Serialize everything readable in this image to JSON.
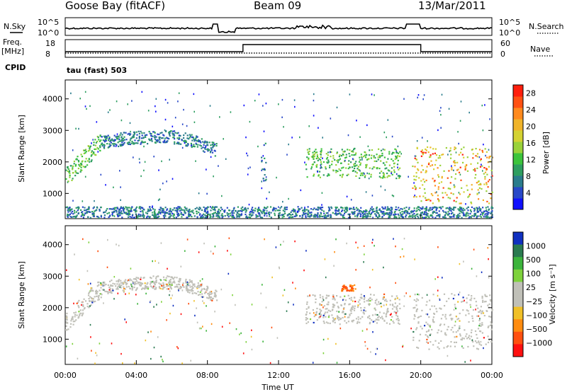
{
  "header": {
    "station": "Goose Bay (fitACF)",
    "beam": "Beam 09",
    "date": "13/Mar/2011"
  },
  "top_panels": {
    "nsky_label": "N.Sky",
    "nsearch_label": "N.Search",
    "freq_label": "Freq.",
    "freq_unit": "[MHz]",
    "nave_label": "Nave",
    "cpid_label": "CPID",
    "cpid_value": "tau (fast) 503",
    "noise_ticks": [
      "10^5",
      "10^0"
    ],
    "freq_ticks": [
      "18",
      "8"
    ],
    "nave_ticks": [
      "60",
      "0"
    ]
  },
  "chart_data": [
    {
      "type": "heatmap",
      "name": "power",
      "ylabel": "Slant Range [km]",
      "xlabel": "",
      "xlim": [
        0,
        24
      ],
      "ylim": [
        200,
        4600
      ],
      "x_ticks": [
        "00:00",
        "04:00",
        "08:00",
        "12:00",
        "16:00",
        "20:00",
        "00:00"
      ],
      "y_ticks": [
        1000,
        2000,
        3000,
        4000
      ],
      "colorbar": {
        "label": "Power [dB]",
        "ticks": [
          4,
          8,
          12,
          16,
          20,
          24,
          28
        ],
        "range": [
          0,
          30
        ],
        "colors": [
          "#1010ff",
          "#2848c8",
          "#2a7c8c",
          "#2e9e60",
          "#3cc43c",
          "#9ad23a",
          "#d4d232",
          "#f0b42a",
          "#ff8a1e",
          "#ff5012",
          "#ff1e0c"
        ]
      },
      "regions": [
        {
          "t0": 0.0,
          "t1": 2.0,
          "r0": 1450,
          "r1": 3100,
          "level": "mid"
        },
        {
          "t0": 2.0,
          "t1": 8.5,
          "r0": 2300,
          "r1": 2950,
          "level": "low"
        },
        {
          "t0": 11.0,
          "t1": 11.3,
          "r0": 1400,
          "r1": 2700,
          "level": "low"
        },
        {
          "t0": 13.5,
          "t1": 18.8,
          "r0": 1500,
          "r1": 2450,
          "level": "mid"
        },
        {
          "t0": 19.5,
          "t1": 24.0,
          "r0": 700,
          "r1": 2500,
          "level": "high"
        },
        {
          "t0": 0.0,
          "t1": 24.0,
          "r0": 250,
          "r1": 600,
          "level": "low"
        }
      ]
    },
    {
      "type": "heatmap",
      "name": "velocity",
      "ylabel": "Slant Range [km]",
      "xlabel": "Time UT",
      "xlim": [
        0,
        24
      ],
      "ylim": [
        200,
        4600
      ],
      "x_ticks": [
        "00:00",
        "04:00",
        "08:00",
        "12:00",
        "16:00",
        "20:00",
        "00:00"
      ],
      "y_ticks": [
        1000,
        2000,
        3000,
        4000
      ],
      "colorbar": {
        "label": "Velocity [m s⁻¹]",
        "ticks": [
          "1000",
          "500",
          "100",
          "25",
          "−25",
          "−100",
          "−500",
          "−1000"
        ],
        "colors": [
          "#1030c0",
          "#2a7a50",
          "#3cb43c",
          "#7ed23c",
          "#c0c0b8",
          "#c0c0b8",
          "#f0c028",
          "#ff8c10",
          "#ff5010",
          "#ff1010"
        ]
      },
      "regions": [
        {
          "t0": 0.0,
          "t1": 2.0,
          "r0": 1450,
          "r1": 3100,
          "level": "ground"
        },
        {
          "t0": 2.0,
          "t1": 8.5,
          "r0": 2300,
          "r1": 2950,
          "level": "ground"
        },
        {
          "t0": 13.5,
          "t1": 18.8,
          "r0": 1500,
          "r1": 2450,
          "level": "ground"
        },
        {
          "t0": 19.5,
          "t1": 24.0,
          "r0": 700,
          "r1": 2500,
          "level": "ground"
        },
        {
          "t0": 15.5,
          "t1": 16.3,
          "r0": 2550,
          "r1": 2750,
          "level": "neg"
        }
      ]
    }
  ]
}
